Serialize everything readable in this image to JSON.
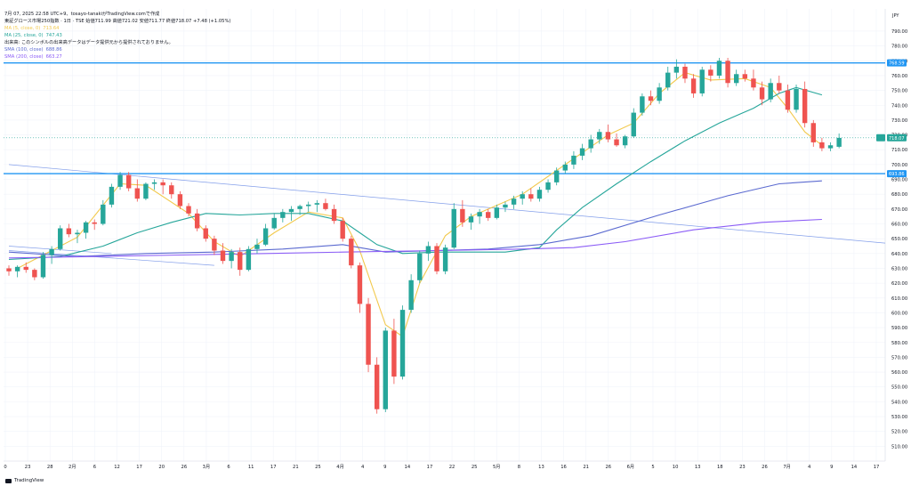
{
  "header": {
    "timestamp": "7月 07, 2025 22:58 UTC+9、tosayo-tanakiがTradingView.comで作成",
    "ohlc_line": "東証グロース市場250指数 · 1日 · TSE  始値711.99  高値721.02  安値711.77  終値718.07  +7.48 (+1.05%)",
    "indicators": [
      {
        "label": "MA (5, close, 0)",
        "value": "713.64",
        "color": "#f2c94c"
      },
      {
        "label": "MA (25, close, 0)",
        "value": "747.43",
        "color": "#26a69a"
      },
      {
        "label": "出来高: このシンボルの出来高データはデータ提供元から提供されておりません。",
        "value": "",
        "color": "#131722"
      },
      {
        "label": "SMA (100, close)",
        "value": "688.86",
        "color": "#5b6ad0"
      },
      {
        "label": "SMA (200, close)",
        "value": "663.27",
        "color": "#8b5cf6"
      }
    ]
  },
  "footer": {
    "brand": "TradingView"
  },
  "chart_data": {
    "type": "candlestick",
    "currency": "JPY",
    "ylim": [
      500,
      805
    ],
    "y_ticks": [
      510,
      520,
      530,
      540,
      550,
      560,
      570,
      580,
      590,
      600,
      610,
      620,
      630,
      640,
      650,
      660,
      670,
      680,
      690,
      700,
      710,
      720,
      730,
      740,
      750,
      760,
      770,
      780,
      790
    ],
    "x_ticks": [
      "0",
      "23",
      "28",
      "2月",
      "6",
      "12",
      "17",
      "20",
      "26",
      "3月",
      "6",
      "11",
      "17",
      "21",
      "25",
      "4月",
      "4",
      "9",
      "14",
      "17",
      "22",
      "25",
      "5月",
      "8",
      "13",
      "16",
      "21",
      "26",
      "6月",
      "5",
      "10",
      "13",
      "18",
      "23",
      "26",
      "7月",
      "4",
      "9",
      "14",
      "17"
    ],
    "horizontal_lines": [
      {
        "value": 768.59,
        "label": "768.59",
        "color": "#2196f3"
      },
      {
        "value": 693.86,
        "label": "693.86",
        "color": "#2196f3"
      }
    ],
    "last_price": {
      "value": 718.07,
      "label": "718.07",
      "color": "#26a69a"
    },
    "ohlc": [
      [
        630,
        632,
        625,
        628
      ],
      [
        628,
        632,
        624,
        631
      ],
      [
        631,
        634,
        627,
        629
      ],
      [
        629,
        630,
        622,
        624
      ],
      [
        624,
        641,
        623,
        639
      ],
      [
        639,
        645,
        633,
        643
      ],
      [
        643,
        659,
        642,
        657
      ],
      [
        657,
        660,
        651,
        653
      ],
      [
        653,
        656,
        647,
        654
      ],
      [
        654,
        662,
        650,
        661
      ],
      [
        661,
        663,
        656,
        660
      ],
      [
        660,
        676,
        659,
        673
      ],
      [
        673,
        687,
        671,
        685
      ],
      [
        685,
        695,
        683,
        693
      ],
      [
        693,
        695,
        682,
        684
      ],
      [
        684,
        690,
        675,
        677
      ],
      [
        677,
        688,
        676,
        687
      ],
      [
        687,
        690,
        683,
        688
      ],
      [
        688,
        690,
        680,
        686
      ],
      [
        686,
        688,
        677,
        680
      ],
      [
        680,
        682,
        670,
        672
      ],
      [
        672,
        674,
        665,
        667
      ],
      [
        667,
        670,
        655,
        657
      ],
      [
        657,
        659,
        648,
        650
      ],
      [
        650,
        652,
        639,
        642
      ],
      [
        642,
        647,
        633,
        635
      ],
      [
        635,
        643,
        630,
        641
      ],
      [
        641,
        644,
        625,
        629
      ],
      [
        629,
        645,
        628,
        643
      ],
      [
        643,
        650,
        640,
        646
      ],
      [
        646,
        660,
        645,
        657
      ],
      [
        657,
        667,
        656,
        664
      ],
      [
        664,
        670,
        661,
        668
      ],
      [
        668,
        672,
        662,
        670
      ],
      [
        670,
        673,
        666,
        672
      ],
      [
        672,
        675,
        668,
        673
      ],
      [
        673,
        676,
        668,
        674
      ],
      [
        674,
        677,
        669,
        670
      ],
      [
        670,
        673,
        660,
        662
      ],
      [
        662,
        664,
        648,
        650
      ],
      [
        650,
        652,
        630,
        632
      ],
      [
        632,
        634,
        600,
        606
      ],
      [
        606,
        610,
        560,
        565
      ],
      [
        565,
        570,
        532,
        535
      ],
      [
        535,
        590,
        533,
        588
      ],
      [
        588,
        596,
        552,
        557
      ],
      [
        557,
        605,
        555,
        602
      ],
      [
        602,
        626,
        600,
        622
      ],
      [
        622,
        642,
        620,
        640
      ],
      [
        640,
        648,
        635,
        645
      ],
      [
        645,
        647,
        626,
        628
      ],
      [
        628,
        646,
        626,
        644
      ],
      [
        644,
        674,
        643,
        670
      ],
      [
        670,
        676,
        658,
        661
      ],
      [
        661,
        667,
        656,
        665
      ],
      [
        665,
        670,
        660,
        668
      ],
      [
        668,
        670,
        662,
        664
      ],
      [
        664,
        673,
        663,
        671
      ],
      [
        671,
        675,
        668,
        673
      ],
      [
        673,
        679,
        670,
        677
      ],
      [
        677,
        682,
        673,
        680
      ],
      [
        680,
        684,
        675,
        677
      ],
      [
        677,
        685,
        675,
        683
      ],
      [
        683,
        690,
        681,
        688
      ],
      [
        688,
        698,
        686,
        696
      ],
      [
        696,
        702,
        694,
        700
      ],
      [
        700,
        709,
        697,
        706
      ],
      [
        706,
        714,
        703,
        711
      ],
      [
        711,
        720,
        708,
        717
      ],
      [
        717,
        724,
        714,
        722
      ],
      [
        722,
        727,
        715,
        717
      ],
      [
        717,
        721,
        712,
        713
      ],
      [
        713,
        720,
        711,
        719
      ],
      [
        719,
        738,
        718,
        735
      ],
      [
        735,
        748,
        733,
        746
      ],
      [
        746,
        750,
        740,
        743
      ],
      [
        743,
        755,
        741,
        752
      ],
      [
        752,
        766,
        750,
        762
      ],
      [
        762,
        771,
        758,
        766
      ],
      [
        766,
        768,
        755,
        758
      ],
      [
        758,
        761,
        745,
        748
      ],
      [
        748,
        766,
        746,
        764
      ],
      [
        764,
        767,
        756,
        760
      ],
      [
        760,
        772,
        758,
        770
      ],
      [
        770,
        772,
        752,
        755
      ],
      [
        755,
        764,
        753,
        761
      ],
      [
        761,
        764,
        756,
        758
      ],
      [
        758,
        764,
        750,
        752
      ],
      [
        752,
        756,
        740,
        744
      ],
      [
        744,
        758,
        742,
        755
      ],
      [
        755,
        760,
        748,
        750
      ],
      [
        750,
        754,
        735,
        737
      ],
      [
        737,
        754,
        735,
        751
      ],
      [
        751,
        756,
        725,
        728
      ],
      [
        728,
        730,
        712,
        715
      ],
      [
        715,
        718,
        709,
        711
      ],
      [
        711,
        715,
        709,
        713
      ],
      [
        712,
        721,
        711,
        718
      ]
    ],
    "ma_lines": [
      {
        "name": "MA (5, close, 0)",
        "color": "#f2c94c",
        "points": [
          [
            1,
            630
          ],
          [
            8,
            651
          ],
          [
            13,
            687
          ],
          [
            16,
            686
          ],
          [
            21,
            667
          ],
          [
            24,
            648
          ],
          [
            27,
            638
          ],
          [
            31,
            654
          ],
          [
            35,
            668
          ],
          [
            39,
            664
          ],
          [
            41,
            642
          ],
          [
            44,
            592
          ],
          [
            46,
            584
          ],
          [
            48,
            620
          ],
          [
            51,
            652
          ],
          [
            54,
            665
          ],
          [
            60,
            680
          ],
          [
            64,
            696
          ],
          [
            70,
            720
          ],
          [
            73,
            728
          ],
          [
            76,
            748
          ],
          [
            79,
            762
          ],
          [
            82,
            757
          ],
          [
            86,
            758
          ],
          [
            89,
            752
          ],
          [
            91,
            738
          ],
          [
            93,
            722
          ],
          [
            95,
            713
          ]
        ]
      },
      {
        "name": "MA (25, close, 0)",
        "color": "#26a69a",
        "points": [
          [
            0,
            636
          ],
          [
            6,
            638
          ],
          [
            11,
            645
          ],
          [
            15,
            654
          ],
          [
            19,
            661
          ],
          [
            23,
            667
          ],
          [
            27,
            666
          ],
          [
            31,
            667
          ],
          [
            35,
            667
          ],
          [
            39,
            662
          ],
          [
            41,
            654
          ],
          [
            43,
            646
          ],
          [
            46,
            640
          ],
          [
            50,
            641
          ],
          [
            54,
            641
          ],
          [
            58,
            641
          ],
          [
            62,
            644
          ],
          [
            64,
            656
          ],
          [
            67,
            671
          ],
          [
            71,
            687
          ],
          [
            75,
            702
          ],
          [
            79,
            716
          ],
          [
            83,
            728
          ],
          [
            87,
            738
          ],
          [
            90,
            748
          ],
          [
            92,
            752
          ],
          [
            95,
            747
          ]
        ]
      },
      {
        "name": "SMA (100, close)",
        "color": "#5b6ad0",
        "points": [
          [
            0,
            641
          ],
          [
            8,
            638
          ],
          [
            16,
            640
          ],
          [
            24,
            641
          ],
          [
            32,
            643
          ],
          [
            39,
            646
          ],
          [
            44,
            641
          ],
          [
            50,
            642
          ],
          [
            56,
            643
          ],
          [
            62,
            646
          ],
          [
            68,
            652
          ],
          [
            76,
            666
          ],
          [
            84,
            679
          ],
          [
            90,
            687
          ],
          [
            95,
            689
          ]
        ]
      },
      {
        "name": "SMA (200, close)",
        "color": "#8b5cf6",
        "points": [
          [
            0,
            637
          ],
          [
            10,
            638
          ],
          [
            20,
            639
          ],
          [
            30,
            640
          ],
          [
            39,
            641
          ],
          [
            50,
            642
          ],
          [
            60,
            643
          ],
          [
            66,
            644
          ],
          [
            72,
            648
          ],
          [
            80,
            656
          ],
          [
            88,
            661
          ],
          [
            95,
            663
          ]
        ]
      }
    ],
    "trend_lines": [
      {
        "from": [
          0,
          700
        ],
        "to": [
          103,
          647
        ],
        "color": "#5b7fe3"
      },
      {
        "from": [
          0,
          642
        ],
        "to": [
          24,
          632
        ],
        "color": "#5b7fe3"
      },
      {
        "from": [
          0,
          645
        ],
        "to": [
          12,
          640
        ],
        "color": "#5b7fe3"
      }
    ],
    "up_color": "#26a69a",
    "down_color": "#ef5350"
  }
}
